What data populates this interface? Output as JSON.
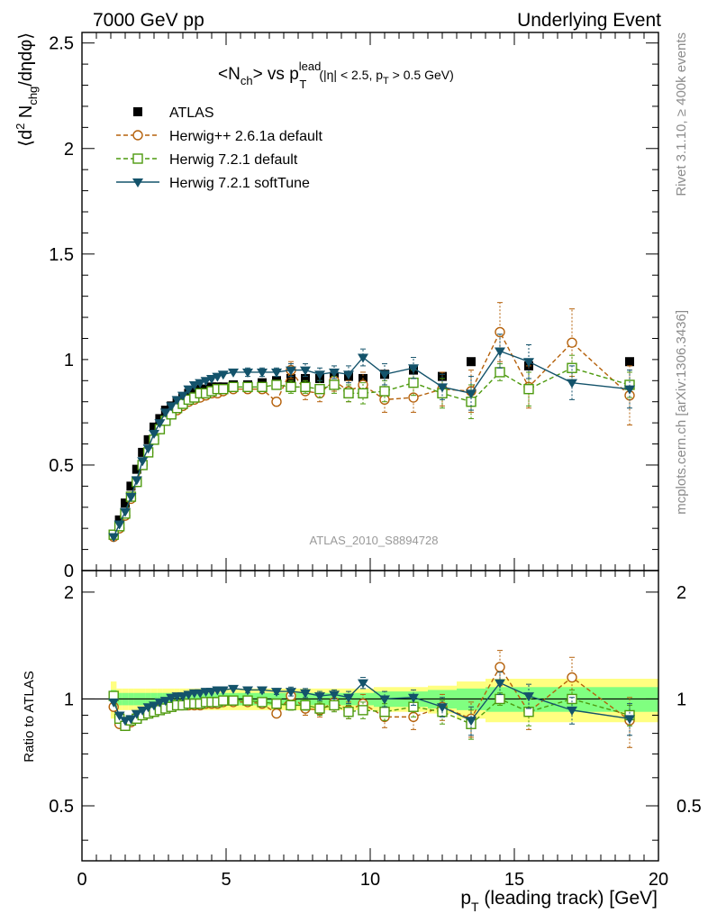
{
  "header": {
    "energy_label": "7000 GeV pp",
    "process_label": "Underlying Event"
  },
  "side": {
    "rivet_label": "Rivet 3.1.10, ≥ 400k events",
    "mcplots_label": "mcplots.cern.ch [arXiv:1306.3436]"
  },
  "colors": {
    "atlas": "#000000",
    "herwigpp": "#b5610b",
    "herwig721": "#4d9a0e",
    "softtune": "#14536b",
    "band_inner": "#80ff80",
    "band_outer": "#ffff80"
  },
  "chart_data": [
    {
      "type": "scatter",
      "title": "<Nch> vs pT lead (|η| < 2.5, pT > 0.5 GeV)",
      "title_parts": {
        "lhs": "<N",
        "lhs_sub": "ch",
        "mid": "> vs p",
        "mid_sup": "lead",
        "mid_sub": "T",
        "cut_a": "(|η| < 2.5, p",
        "cut_sub": "T",
        "cut_b": " > 0.5 GeV)"
      },
      "watermark": "ATLAS_2010_S8894728",
      "ylabel": "⟨d² N_chg/dηdφ⟩",
      "ylabel_parts": {
        "a": "⟨d",
        "sup": "2",
        "b": " N",
        "sub": "chg",
        "c": "/dηdφ⟩"
      },
      "xlim": [
        0,
        20
      ],
      "ylim": [
        0,
        2.55
      ],
      "yticks": [
        "0",
        "0.5",
        "1",
        "1.5",
        "2",
        "2.5"
      ],
      "ytick_values": [
        0,
        0.5,
        1,
        1.5,
        2,
        2.5
      ],
      "x": [
        1.1,
        1.3,
        1.5,
        1.7,
        1.9,
        2.1,
        2.3,
        2.5,
        2.7,
        2.9,
        3.1,
        3.3,
        3.5,
        3.7,
        3.9,
        4.1,
        4.3,
        4.5,
        4.7,
        4.9,
        5.25,
        5.75,
        6.25,
        6.75,
        7.25,
        7.75,
        8.25,
        8.75,
        9.25,
        9.75,
        10.5,
        11.5,
        12.5,
        13.5,
        14.5,
        15.5,
        17,
        19
      ],
      "series": [
        {
          "name": "ATLAS",
          "marker": "filled-square",
          "values": [
            0.17,
            0.24,
            0.32,
            0.4,
            0.48,
            0.56,
            0.62,
            0.68,
            0.72,
            0.76,
            0.78,
            0.8,
            0.82,
            0.84,
            0.85,
            0.86,
            0.86,
            0.87,
            0.87,
            0.87,
            0.88,
            0.88,
            0.89,
            0.9,
            0.91,
            0.91,
            0.91,
            0.92,
            0.92,
            0.91,
            0.93,
            0.95,
            0.92,
            0.99,
            0.94,
            0.97,
            0.96,
            0.99
          ]
        },
        {
          "name": "Herwig++ 2.6.1a default",
          "marker": "open-circle",
          "values": [
            0.16,
            0.2,
            0.26,
            0.34,
            0.42,
            0.5,
            0.56,
            0.62,
            0.67,
            0.71,
            0.74,
            0.76,
            0.78,
            0.8,
            0.81,
            0.82,
            0.83,
            0.84,
            0.84,
            0.85,
            0.86,
            0.86,
            0.86,
            0.8,
            0.95,
            0.85,
            0.84,
            0.9,
            0.85,
            0.88,
            0.81,
            0.82,
            0.86,
            0.85,
            1.13,
            0.87,
            1.08,
            0.83
          ],
          "errors": [
            0.01,
            0.01,
            0.01,
            0.01,
            0.01,
            0.01,
            0.01,
            0.01,
            0.01,
            0.01,
            0.01,
            0.01,
            0.01,
            0.01,
            0.01,
            0.01,
            0.01,
            0.01,
            0.01,
            0.01,
            0.01,
            0.02,
            0.02,
            0.02,
            0.04,
            0.04,
            0.04,
            0.05,
            0.05,
            0.06,
            0.06,
            0.07,
            0.08,
            0.1,
            0.14,
            0.1,
            0.16,
            0.14
          ]
        },
        {
          "name": "Herwig 7.2.1 default",
          "marker": "open-square",
          "values": [
            0.17,
            0.21,
            0.27,
            0.35,
            0.42,
            0.5,
            0.56,
            0.62,
            0.67,
            0.71,
            0.74,
            0.77,
            0.79,
            0.81,
            0.82,
            0.84,
            0.84,
            0.85,
            0.86,
            0.86,
            0.87,
            0.87,
            0.87,
            0.88,
            0.87,
            0.87,
            0.86,
            0.88,
            0.84,
            0.84,
            0.85,
            0.89,
            0.84,
            0.8,
            0.94,
            0.86,
            0.96,
            0.88
          ],
          "errors": [
            0.01,
            0.01,
            0.01,
            0.01,
            0.01,
            0.01,
            0.01,
            0.01,
            0.01,
            0.01,
            0.01,
            0.01,
            0.01,
            0.01,
            0.01,
            0.01,
            0.01,
            0.01,
            0.01,
            0.01,
            0.01,
            0.02,
            0.02,
            0.02,
            0.03,
            0.03,
            0.04,
            0.04,
            0.04,
            0.05,
            0.05,
            0.06,
            0.07,
            0.08,
            0.04,
            0.08,
            0.06,
            0.06
          ]
        },
        {
          "name": "Herwig 7.2.1 softTune",
          "marker": "filled-triangle-down",
          "values": [
            0.16,
            0.22,
            0.28,
            0.35,
            0.43,
            0.52,
            0.58,
            0.65,
            0.7,
            0.75,
            0.78,
            0.81,
            0.83,
            0.86,
            0.88,
            0.89,
            0.9,
            0.91,
            0.92,
            0.93,
            0.94,
            0.94,
            0.94,
            0.94,
            0.95,
            0.95,
            0.93,
            0.94,
            0.93,
            1.01,
            0.93,
            0.96,
            0.87,
            0.84,
            1.04,
            0.99,
            0.89,
            0.86
          ],
          "errors": [
            0.01,
            0.01,
            0.01,
            0.01,
            0.01,
            0.01,
            0.01,
            0.01,
            0.01,
            0.01,
            0.01,
            0.01,
            0.01,
            0.01,
            0.01,
            0.01,
            0.01,
            0.01,
            0.01,
            0.01,
            0.01,
            0.02,
            0.02,
            0.02,
            0.03,
            0.03,
            0.03,
            0.03,
            0.04,
            0.04,
            0.05,
            0.05,
            0.06,
            0.08,
            0.08,
            0.08,
            0.08,
            0.09
          ]
        }
      ],
      "legend_position": "top-left"
    },
    {
      "type": "scatter",
      "title": "Ratio to ATLAS",
      "ylabel": "Ratio to ATLAS",
      "xlabel": "p_T (leading track) [GeV]",
      "xlabel_parts": {
        "a": "p",
        "sub": "T",
        "b": " (leading track) [GeV]"
      },
      "xlim": [
        0,
        20
      ],
      "ylim": [
        0.35,
        2.3
      ],
      "xticks": [
        "0",
        "5",
        "10",
        "15",
        "20"
      ],
      "xtick_values": [
        0,
        5,
        10,
        15,
        20
      ],
      "yticks": [
        "0.5",
        "1",
        "2"
      ],
      "ytick_values": [
        0.5,
        1,
        2
      ],
      "reference_line": 1,
      "band_inner_halfwidth": [
        0.06,
        0.04,
        0.04,
        0.04,
        0.04,
        0.04,
        0.04,
        0.04,
        0.04,
        0.04,
        0.04,
        0.04,
        0.04,
        0.04,
        0.04,
        0.04,
        0.04,
        0.04,
        0.04,
        0.04,
        0.04,
        0.04,
        0.04,
        0.04,
        0.04,
        0.04,
        0.04,
        0.04,
        0.04,
        0.04,
        0.05,
        0.05,
        0.06,
        0.07,
        0.08,
        0.08,
        0.08,
        0.08
      ],
      "band_outer_halfwidth": [
        0.12,
        0.07,
        0.07,
        0.07,
        0.07,
        0.07,
        0.07,
        0.07,
        0.07,
        0.07,
        0.07,
        0.07,
        0.07,
        0.07,
        0.07,
        0.07,
        0.07,
        0.07,
        0.07,
        0.07,
        0.07,
        0.07,
        0.07,
        0.07,
        0.07,
        0.07,
        0.07,
        0.07,
        0.07,
        0.07,
        0.08,
        0.08,
        0.09,
        0.12,
        0.14,
        0.14,
        0.14,
        0.14
      ],
      "series": [
        {
          "name": "Herwig++ 2.6.1a default",
          "values": [
            0.95,
            0.85,
            0.84,
            0.86,
            0.88,
            0.9,
            0.91,
            0.92,
            0.94,
            0.94,
            0.95,
            0.96,
            0.96,
            0.96,
            0.96,
            0.96,
            0.97,
            0.97,
            0.97,
            0.98,
            0.98,
            0.98,
            0.97,
            0.91,
            1.02,
            0.94,
            0.93,
            0.98,
            0.93,
            0.97,
            0.89,
            0.89,
            0.95,
            0.88,
            1.23,
            0.92,
            1.15,
            0.87
          ],
          "errors": [
            0.01,
            0.01,
            0.01,
            0.01,
            0.01,
            0.01,
            0.01,
            0.01,
            0.01,
            0.01,
            0.01,
            0.01,
            0.01,
            0.01,
            0.01,
            0.01,
            0.01,
            0.01,
            0.01,
            0.01,
            0.01,
            0.02,
            0.02,
            0.02,
            0.04,
            0.04,
            0.04,
            0.05,
            0.05,
            0.06,
            0.06,
            0.07,
            0.08,
            0.1,
            0.14,
            0.1,
            0.16,
            0.14
          ]
        },
        {
          "name": "Herwig 7.2.1 default",
          "values": [
            1.02,
            0.88,
            0.84,
            0.87,
            0.88,
            0.9,
            0.91,
            0.92,
            0.93,
            0.94,
            0.95,
            0.96,
            0.96,
            0.97,
            0.97,
            0.97,
            0.98,
            0.98,
            0.98,
            0.99,
            0.99,
            0.99,
            0.98,
            0.97,
            0.96,
            0.96,
            0.94,
            0.96,
            0.92,
            0.93,
            0.92,
            0.95,
            0.92,
            0.85,
            1.0,
            0.92,
            1.0,
            0.9
          ],
          "errors": [
            0.01,
            0.01,
            0.01,
            0.01,
            0.01,
            0.01,
            0.01,
            0.01,
            0.01,
            0.01,
            0.01,
            0.01,
            0.01,
            0.01,
            0.01,
            0.01,
            0.01,
            0.01,
            0.01,
            0.01,
            0.01,
            0.02,
            0.02,
            0.02,
            0.03,
            0.03,
            0.04,
            0.04,
            0.04,
            0.05,
            0.05,
            0.06,
            0.07,
            0.08,
            0.04,
            0.08,
            0.06,
            0.06
          ]
        },
        {
          "name": "Herwig 7.2.1 softTune",
          "values": [
            0.98,
            0.9,
            0.87,
            0.88,
            0.91,
            0.93,
            0.95,
            0.96,
            0.98,
            0.99,
            1.01,
            1.02,
            1.02,
            1.03,
            1.04,
            1.04,
            1.05,
            1.05,
            1.06,
            1.06,
            1.07,
            1.06,
            1.06,
            1.05,
            1.05,
            1.04,
            1.02,
            1.03,
            1.01,
            1.11,
            1.0,
            1.01,
            0.95,
            0.87,
            1.11,
            1.02,
            0.93,
            0.88
          ],
          "errors": [
            0.01,
            0.01,
            0.01,
            0.01,
            0.01,
            0.01,
            0.01,
            0.01,
            0.01,
            0.01,
            0.01,
            0.01,
            0.01,
            0.01,
            0.01,
            0.01,
            0.01,
            0.01,
            0.01,
            0.01,
            0.01,
            0.02,
            0.02,
            0.02,
            0.03,
            0.03,
            0.03,
            0.03,
            0.04,
            0.04,
            0.05,
            0.05,
            0.06,
            0.08,
            0.08,
            0.08,
            0.08,
            0.09
          ]
        }
      ]
    }
  ]
}
